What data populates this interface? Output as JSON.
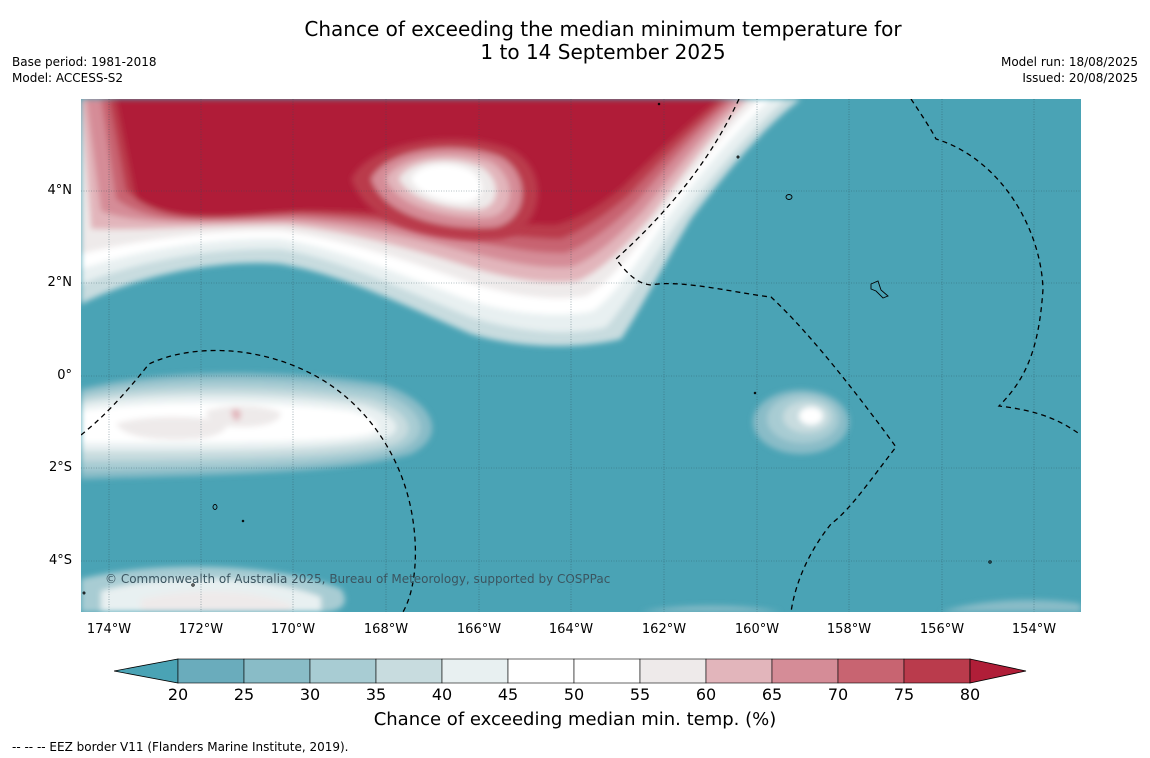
{
  "title": {
    "line1": "Chance of exceeding the median minimum temperature for",
    "line2": "1 to 14 September 2025"
  },
  "meta": {
    "base_period": "Base period: 1981-2018",
    "model": "Model: ACCESS-S2",
    "model_run": "Model run: 18/08/2025",
    "issued": "Issued: 20/08/2025"
  },
  "map": {
    "copyright": "© Commonwealth of Australia 2025, Bureau of Meteorology, supported by COSPPac",
    "lon_ticks": [
      "174°W",
      "172°W",
      "170°W",
      "168°W",
      "166°W",
      "164°W",
      "162°W",
      "160°W",
      "158°W",
      "156°W",
      "154°W"
    ],
    "lat_ticks": [
      "4°N",
      "2°N",
      "0°",
      "2°S",
      "4°S"
    ],
    "lon_range": [
      -174.6,
      -153.0
    ],
    "lat_range": [
      -5.2,
      5.9
    ],
    "lon_values": [
      -174,
      -172,
      -170,
      -168,
      -166,
      -164,
      -162,
      -160,
      -158,
      -156,
      -154
    ],
    "lat_values": [
      4,
      2,
      0,
      -2,
      -4
    ]
  },
  "colorbar": {
    "ticks": [
      "20",
      "25",
      "30",
      "35",
      "40",
      "45",
      "50",
      "55",
      "60",
      "65",
      "70",
      "75",
      "80"
    ],
    "colors": [
      "#4aa3b5",
      "#6aacbc",
      "#89bcc7",
      "#a8ccd3",
      "#c8dcdf",
      "#e8f0f1",
      "#ffffff",
      "#ffffff",
      "#eeeaea",
      "#e2b5bb",
      "#d58c97",
      "#c86471",
      "#ba3b4c",
      "#b01e38"
    ],
    "label": "Chance of exceeding median min. temp. (%)"
  },
  "footer": "--  --  -- EEZ border V11 (Flanders Marine Institute, 2019)."
}
